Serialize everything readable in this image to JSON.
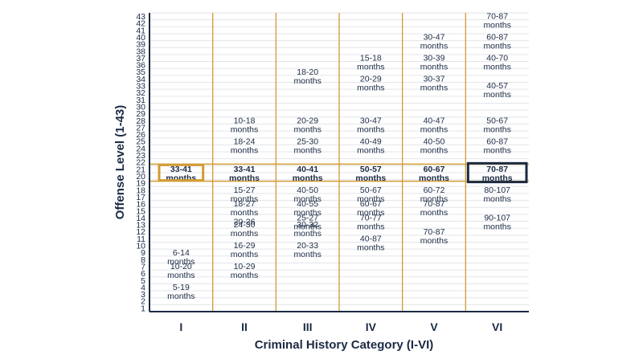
{
  "colors": {
    "navy": "#1b2a44",
    "gold": "#d29b33",
    "grid": "#e3e5e9",
    "text": "#1b2a44"
  },
  "chart_data": {
    "type": "table",
    "title": "",
    "xlabel": "Criminal History Category (I-VI)",
    "ylabel": "Offense Level (1-43)",
    "ylim": [
      1,
      43
    ],
    "categories": [
      "I",
      "II",
      "III",
      "IV",
      "V",
      "VI"
    ],
    "highlight_rows": [
      20,
      21
    ],
    "highlight_column": "VI",
    "cells": [
      {
        "column": "I",
        "offense_level": 8.5,
        "text": "6-14",
        "unit": "months"
      },
      {
        "column": "I",
        "offense_level": 6.5,
        "text": "10-20",
        "unit": "months"
      },
      {
        "column": "I",
        "offense_level": 3.5,
        "text": "5-19",
        "unit": "months"
      },
      {
        "column": "I",
        "offense_level": 20.5,
        "text": "33-41",
        "unit": "months",
        "style": "gold-highlight"
      },
      {
        "column": "II",
        "offense_level": 27.5,
        "text": "10-18",
        "unit": "months"
      },
      {
        "column": "II",
        "offense_level": 24.5,
        "text": "18-24",
        "unit": "months"
      },
      {
        "column": "II",
        "offense_level": 20.5,
        "text": "33-41",
        "unit": "months",
        "style": "bold"
      },
      {
        "column": "II",
        "offense_level": 17.5,
        "text": "15-27",
        "unit": "months"
      },
      {
        "column": "II",
        "offense_level": 15.5,
        "text": "18-27",
        "unit": "months"
      },
      {
        "column": "II",
        "offense_level": 13.5,
        "text": "20-26",
        "unit": ""
      },
      {
        "column": "II",
        "offense_level": 12.5,
        "text": "24-30",
        "unit": "months"
      },
      {
        "column": "II",
        "offense_level": 9.5,
        "text": "16-29",
        "unit": "months"
      },
      {
        "column": "II",
        "offense_level": 6.5,
        "text": "10-29",
        "unit": "months"
      },
      {
        "column": "III",
        "offense_level": 34.5,
        "text": "18-20",
        "unit": "months"
      },
      {
        "column": "III",
        "offense_level": 27.5,
        "text": "20-29",
        "unit": "months"
      },
      {
        "column": "III",
        "offense_level": 24.5,
        "text": "25-30",
        "unit": "months"
      },
      {
        "column": "III",
        "offense_level": 20.5,
        "text": "40-41",
        "unit": "months",
        "style": "bold"
      },
      {
        "column": "III",
        "offense_level": 17.5,
        "text": "40-50",
        "unit": "months"
      },
      {
        "column": "III",
        "offense_level": 15.5,
        "text": "40-55",
        "unit": "months"
      },
      {
        "column": "III",
        "offense_level": 13.5,
        "text": "25-27",
        "unit": "months"
      },
      {
        "column": "III",
        "offense_level": 12.5,
        "text": "30-32",
        "unit": "months"
      },
      {
        "column": "III",
        "offense_level": 9.5,
        "text": "20-33",
        "unit": "months"
      },
      {
        "column": "IV",
        "offense_level": 36.5,
        "text": "15-18",
        "unit": "months"
      },
      {
        "column": "IV",
        "offense_level": 33.5,
        "text": "20-29",
        "unit": "months"
      },
      {
        "column": "IV",
        "offense_level": 27.5,
        "text": "30-47",
        "unit": "months"
      },
      {
        "column": "IV",
        "offense_level": 24.5,
        "text": "40-49",
        "unit": "months"
      },
      {
        "column": "IV",
        "offense_level": 20.5,
        "text": "50-57",
        "unit": "months",
        "style": "bold"
      },
      {
        "column": "IV",
        "offense_level": 17.5,
        "text": "50-67",
        "unit": "months"
      },
      {
        "column": "IV",
        "offense_level": 15.5,
        "text": "60-67",
        "unit": "months"
      },
      {
        "column": "IV",
        "offense_level": 13.5,
        "text": "70-77",
        "unit": "months"
      },
      {
        "column": "IV",
        "offense_level": 10.5,
        "text": "40-87",
        "unit": "months"
      },
      {
        "column": "V",
        "offense_level": 39.5,
        "text": "30-47",
        "unit": "months"
      },
      {
        "column": "V",
        "offense_level": 36.5,
        "text": "30-39",
        "unit": "months"
      },
      {
        "column": "V",
        "offense_level": 33.5,
        "text": "30-37",
        "unit": "months"
      },
      {
        "column": "V",
        "offense_level": 27.5,
        "text": "40-47",
        "unit": "months"
      },
      {
        "column": "V",
        "offense_level": 24.5,
        "text": "40-50",
        "unit": "months"
      },
      {
        "column": "V",
        "offense_level": 20.5,
        "text": "60-67",
        "unit": "months",
        "style": "bold"
      },
      {
        "column": "V",
        "offense_level": 17.5,
        "text": "60-72",
        "unit": "months"
      },
      {
        "column": "V",
        "offense_level": 15.5,
        "text": "70-87",
        "unit": "months"
      },
      {
        "column": "V",
        "offense_level": 11.5,
        "text": "70-87",
        "unit": "months"
      },
      {
        "column": "VI",
        "offense_level": 42.5,
        "text": "70-87",
        "unit": "months"
      },
      {
        "column": "VI",
        "offense_level": 39.5,
        "text": "60-87",
        "unit": "months"
      },
      {
        "column": "VI",
        "offense_level": 36.5,
        "text": "40-70",
        "unit": "months"
      },
      {
        "column": "VI",
        "offense_level": 32.5,
        "text": "40-57",
        "unit": "months"
      },
      {
        "column": "VI",
        "offense_level": 27.5,
        "text": "50-67",
        "unit": "months"
      },
      {
        "column": "VI",
        "offense_level": 24.5,
        "text": "60-87",
        "unit": "months",
        "style": "gold"
      },
      {
        "column": "VI",
        "offense_level": 20.5,
        "text": "70-87",
        "unit": "months",
        "style": "gold-bold-navybox"
      },
      {
        "column": "VI",
        "offense_level": 17.5,
        "text": "80-107",
        "unit": "months",
        "style": "gold"
      },
      {
        "column": "VI",
        "offense_level": 13.5,
        "text": "90-107",
        "unit": "months"
      }
    ]
  }
}
